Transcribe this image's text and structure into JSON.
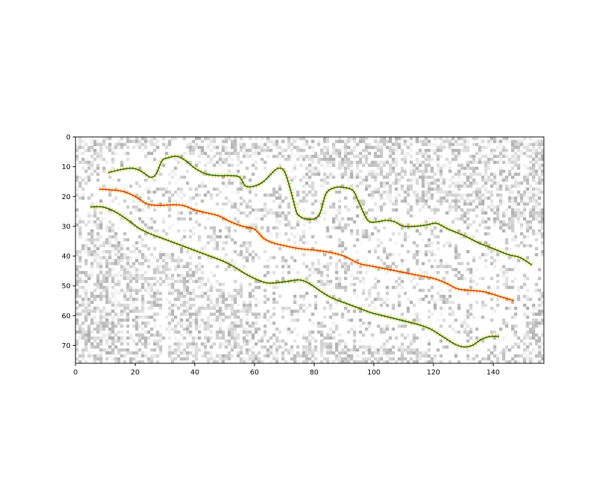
{
  "chart_data": {
    "type": "line",
    "title": "",
    "xlabel": "",
    "ylabel": "",
    "xlim": [
      0,
      157
    ],
    "ylim": [
      76,
      0
    ],
    "y_inverted": true,
    "grid": false,
    "legend": "none",
    "background": "noisy grayscale image (pixel grid 157 x 76)",
    "xticks": [
      0,
      20,
      40,
      60,
      80,
      100,
      120,
      140
    ],
    "yticks": [
      0,
      10,
      20,
      30,
      40,
      50,
      60,
      70
    ],
    "series": [
      {
        "line_color": "#1a6b00",
        "marker_color": "#f0b400",
        "x": [
          11,
          15,
          19,
          22,
          25,
          27,
          29,
          31,
          34,
          37,
          40,
          44,
          48,
          52,
          55,
          57,
          60,
          63,
          66,
          68,
          70,
          72,
          74,
          75,
          77,
          80,
          82,
          84,
          87,
          90,
          93,
          95,
          98,
          101,
          104,
          107,
          110,
          114,
          118,
          121,
          125,
          130,
          135,
          140,
          145,
          149,
          153
        ],
        "y": [
          12,
          11,
          10.5,
          11.5,
          13.5,
          12.5,
          8,
          7,
          6.5,
          8,
          10.5,
          12.5,
          13,
          13,
          13.5,
          16.5,
          16.5,
          15,
          12,
          10.5,
          11.5,
          17.5,
          25,
          26.5,
          27.5,
          27.5,
          25.5,
          19,
          17,
          17,
          18,
          22,
          28,
          28.5,
          28,
          28.5,
          30,
          30,
          29.5,
          29,
          31,
          33,
          35.5,
          37.5,
          39.5,
          40.5,
          43
        ]
      },
      {
        "line_color": "#e03000",
        "marker_color": "#f0b400",
        "x": [
          8,
          12,
          16,
          20,
          24,
          28,
          32,
          36,
          40,
          44,
          48,
          52,
          56,
          60,
          63,
          66,
          70,
          75,
          80,
          85,
          90,
          95,
          100,
          105,
          110,
          115,
          120,
          124,
          128,
          132,
          137,
          142,
          147
        ],
        "y": [
          17.5,
          17.8,
          18.3,
          20,
          22.5,
          23,
          22.8,
          23,
          24.5,
          25.5,
          26.5,
          28.5,
          30,
          31,
          34,
          35.5,
          36.5,
          37.5,
          38,
          38.7,
          40,
          42.5,
          43.5,
          44.5,
          45.5,
          46.5,
          47.5,
          49,
          51,
          51.5,
          52,
          53.5,
          55
        ]
      },
      {
        "line_color": "#1a6b00",
        "marker_color": "#f0b400",
        "x": [
          5,
          9,
          13,
          17,
          21,
          25,
          29,
          33,
          37,
          41,
          45,
          49,
          53,
          57,
          61,
          64,
          67,
          71,
          75,
          78,
          81,
          84,
          87,
          91,
          95,
          99,
          103,
          107,
          111,
          115,
          119,
          123,
          127,
          130,
          133,
          136,
          139,
          142
        ],
        "y": [
          23.5,
          23.5,
          25,
          27.5,
          30.5,
          32.5,
          34,
          35.5,
          37,
          38.5,
          40,
          41.5,
          43.5,
          46,
          48,
          49,
          49,
          48.5,
          48,
          49,
          51,
          53,
          54.5,
          56,
          57.5,
          59,
          60,
          61,
          62,
          63,
          64.5,
          67,
          69.5,
          70.5,
          70,
          68,
          67,
          67
        ]
      }
    ]
  }
}
